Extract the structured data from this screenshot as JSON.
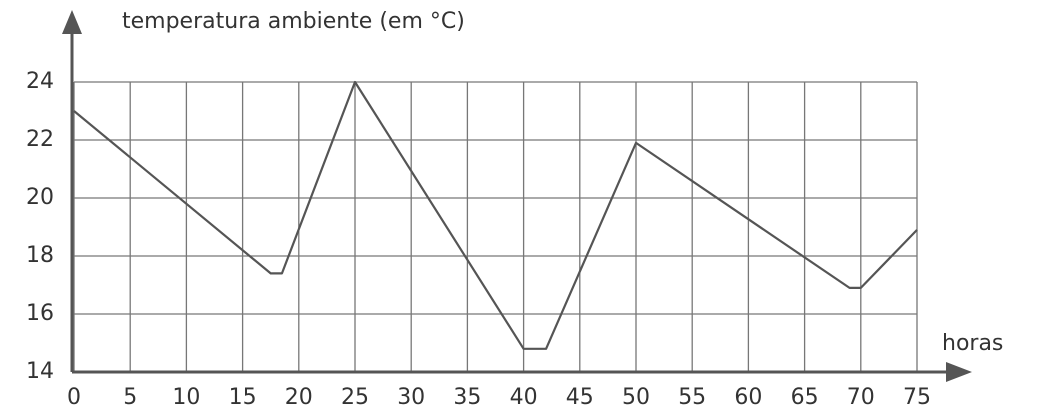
{
  "chart_data": {
    "type": "line",
    "y_label": "temperatura ambiente (em °C)",
    "x_label": "horas",
    "x": [
      0,
      17.5,
      18.5,
      25,
      40,
      42,
      50,
      69,
      70,
      75
    ],
    "series": [
      {
        "color": "#555555",
        "values": [
          23,
          17.4,
          17.4,
          24,
          14.8,
          14.8,
          21.9,
          16.9,
          16.9,
          18.9
        ]
      }
    ],
    "xlim": [
      0,
      75
    ],
    "ylim": [
      14,
      24
    ],
    "xticks": [
      0,
      5,
      10,
      15,
      20,
      25,
      30,
      35,
      40,
      45,
      50,
      55,
      60,
      65,
      70,
      75
    ],
    "yticks": [
      14,
      16,
      18,
      20,
      22,
      24
    ],
    "grid": true
  }
}
